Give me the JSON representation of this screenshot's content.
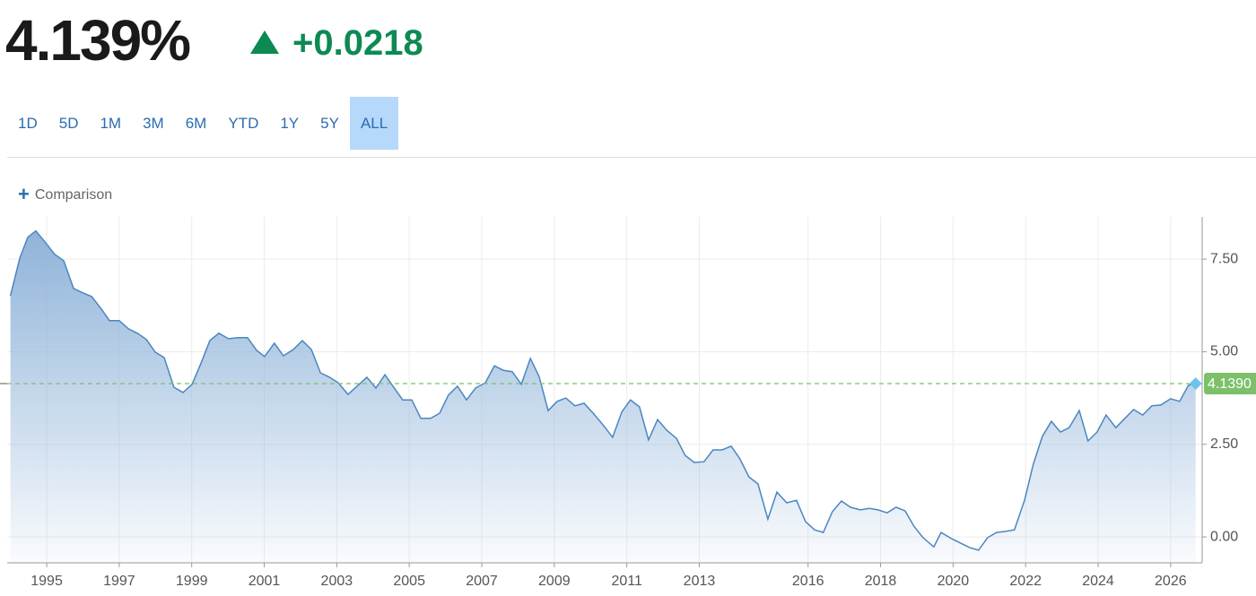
{
  "header": {
    "price": "4.139%",
    "change": "+0.0218"
  },
  "ranges": [
    "1D",
    "5D",
    "1M",
    "3M",
    "6M",
    "YTD",
    "1Y",
    "5Y",
    "ALL"
  ],
  "active_range_index": 8,
  "comparison": "Comparison",
  "chart_data": {
    "type": "area",
    "x": [
      1994.0,
      1994.26,
      1994.48,
      1994.7,
      1994.95,
      1995.22,
      1995.47,
      1995.74,
      1995.99,
      1996.24,
      1996.51,
      1996.73,
      1997.0,
      1997.25,
      1997.5,
      1997.75,
      1997.99,
      1998.24,
      1998.51,
      1998.76,
      1999.01,
      1999.26,
      1999.5,
      1999.75,
      2000.02,
      2000.27,
      2000.54,
      2000.79,
      2001.01,
      2001.28,
      2001.53,
      2001.8,
      2002.05,
      2002.3,
      2002.55,
      2002.8,
      2003.04,
      2003.31,
      2003.56,
      2003.83,
      2004.08,
      2004.33,
      2004.57,
      2004.82,
      2005.07,
      2005.32,
      2005.59,
      2005.84,
      2006.08,
      2006.33,
      2006.58,
      2006.83,
      2007.1,
      2007.35,
      2007.59,
      2007.84,
      2008.09,
      2008.34,
      2008.58,
      2008.83,
      2009.08,
      2009.32,
      2009.57,
      2009.82,
      2010.07,
      2010.34,
      2010.61,
      2010.86,
      2011.1,
      2011.35,
      2011.6,
      2011.85,
      2012.1,
      2012.37,
      2012.61,
      2012.86,
      2013.13,
      2013.38,
      2013.63,
      2013.88,
      2014.12,
      2014.37,
      2014.62,
      2014.89,
      2015.14,
      2015.41,
      2015.68,
      2015.93,
      2016.18,
      2016.42,
      2016.67,
      2016.92,
      2017.17,
      2017.44,
      2017.69,
      2017.93,
      2018.18,
      2018.43,
      2018.68,
      2018.92,
      2019.17,
      2019.47,
      2019.67,
      2019.96,
      2020.21,
      2020.46,
      2020.7,
      2020.95,
      2021.2,
      2021.45,
      2021.69,
      2021.97,
      2022.21,
      2022.46,
      2022.71,
      2022.96,
      2023.2,
      2023.48,
      2023.72,
      2023.97,
      2024.22,
      2024.49,
      2024.74,
      2024.98,
      2025.23,
      2025.48,
      2025.73,
      2026.0,
      2026.25,
      2026.49,
      2026.69
    ],
    "values": [
      6.51,
      7.53,
      8.09,
      8.26,
      7.97,
      7.63,
      7.46,
      6.71,
      6.59,
      6.49,
      6.15,
      5.84,
      5.84,
      5.62,
      5.5,
      5.33,
      4.99,
      4.84,
      4.04,
      3.9,
      4.12,
      4.7,
      5.3,
      5.5,
      5.35,
      5.38,
      5.38,
      5.04,
      4.87,
      5.23,
      4.89,
      5.06,
      5.3,
      5.06,
      4.43,
      4.31,
      4.16,
      3.85,
      4.07,
      4.31,
      4.02,
      4.38,
      4.04,
      3.7,
      3.7,
      3.2,
      3.2,
      3.34,
      3.83,
      4.07,
      3.7,
      4.02,
      4.16,
      4.62,
      4.5,
      4.46,
      4.12,
      4.82,
      4.33,
      3.41,
      3.66,
      3.75,
      3.54,
      3.61,
      3.34,
      3.03,
      2.69,
      3.37,
      3.7,
      3.51,
      2.62,
      3.17,
      2.88,
      2.66,
      2.2,
      2.01,
      2.03,
      2.35,
      2.35,
      2.45,
      2.11,
      1.62,
      1.43,
      0.48,
      1.21,
      0.92,
      0.99,
      0.41,
      0.19,
      0.12,
      0.68,
      0.97,
      0.8,
      0.73,
      0.77,
      0.73,
      0.65,
      0.8,
      0.7,
      0.29,
      -0.02,
      -0.27,
      0.12,
      -0.05,
      -0.17,
      -0.29,
      -0.36,
      -0.02,
      0.12,
      0.15,
      0.19,
      0.99,
      1.96,
      2.71,
      3.12,
      2.83,
      2.95,
      3.41,
      2.59,
      2.83,
      3.29,
      2.95,
      3.2,
      3.44,
      3.29,
      3.54,
      3.56,
      3.73,
      3.66,
      4.09,
      4.139
    ],
    "color": "#4a86c0",
    "xlim": [
      1993.91,
      2026.87
    ],
    "ylim": [
      -0.7,
      8.64
    ],
    "xticks": [
      1995,
      1997,
      1999,
      2001,
      2003,
      2005,
      2007,
      2009,
      2011,
      2013,
      2016,
      2018,
      2020,
      2022,
      2024,
      2026
    ],
    "yticks": [
      {
        "value": 0,
        "label": "0.00"
      },
      {
        "value": 2.5,
        "label": "2.50"
      },
      {
        "value": 5,
        "label": "5.00"
      },
      {
        "value": 7.5,
        "label": "7.50"
      }
    ],
    "grid": true,
    "reference": {
      "value": 4.139,
      "label": "4.1390",
      "color": "#7cc06a"
    }
  }
}
